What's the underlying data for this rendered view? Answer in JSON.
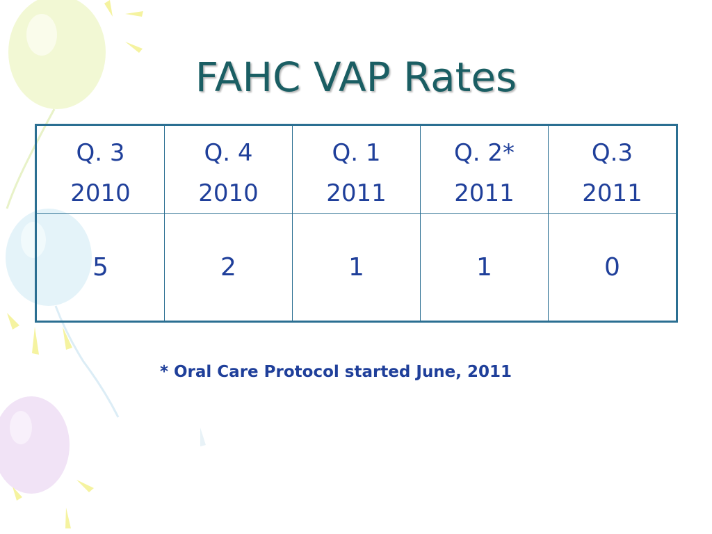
{
  "slide": {
    "title": "FAHC VAP Rates",
    "table": {
      "headers": [
        {
          "line1": "Q. 3",
          "line2": "2010"
        },
        {
          "line1": "Q. 4",
          "line2": "2010"
        },
        {
          "line1": "Q. 1",
          "line2": "2011"
        },
        {
          "line1": "Q. 2*",
          "line2": "2011"
        },
        {
          "line1": "Q.3",
          "line2": "2011"
        }
      ],
      "values": [
        "5",
        "2",
        "1",
        "1",
        "0"
      ]
    },
    "footnote": "* Oral Care Protocol started June, 2011"
  },
  "colors": {
    "title": "#1a5e63",
    "text": "#1f3f9a",
    "table_border": "#2b6f92"
  }
}
